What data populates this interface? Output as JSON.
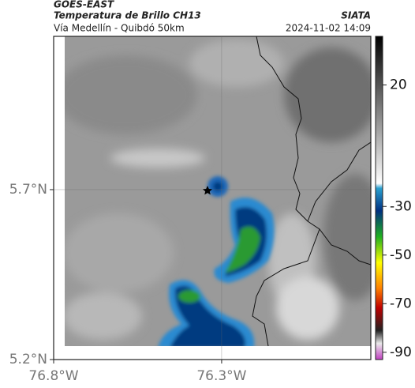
{
  "header": {
    "satellite": "GOES-EAST",
    "title": "Temperatura de Brillo CH13",
    "subtitle": "Vía Medellín - Quibdó 50km",
    "source": "SIATA",
    "timestamp": "2024-11-02 14:09"
  },
  "map": {
    "xlim": [
      -76.8,
      -75.856
    ],
    "ylim": [
      5.2,
      6.151
    ],
    "xticks": [
      {
        "value": -76.8,
        "label": "76.8°W"
      },
      {
        "value": -76.3,
        "label": "76.3°W"
      }
    ],
    "yticks": [
      {
        "value": 5.7,
        "label": "5.7°N"
      },
      {
        "value": 5.2,
        "label": "5.2°N"
      }
    ],
    "grid": true
  },
  "colorbar": {
    "lim": [
      -93,
      40
    ],
    "ticks": [
      20,
      -30,
      -50,
      -70,
      -90
    ]
  }
}
